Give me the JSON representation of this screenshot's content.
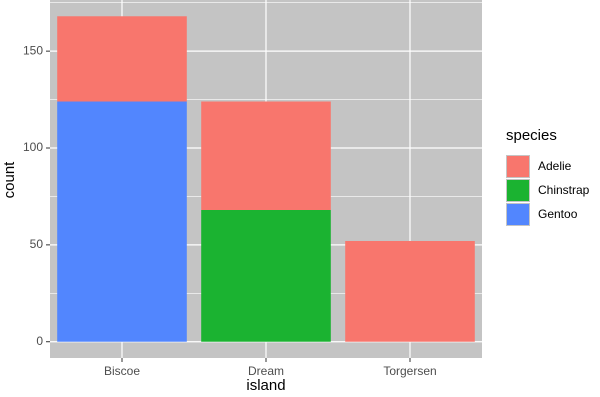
{
  "chart_data": {
    "type": "stacked_bar",
    "x_label": "island",
    "y_label": "count",
    "legend_title": "species",
    "categories": [
      "Biscoe",
      "Dream",
      "Torgersen"
    ],
    "series": [
      {
        "name": "Adelie",
        "color": "#f8766d",
        "values": [
          44,
          56,
          52
        ]
      },
      {
        "name": "Chinstrap",
        "color": "#1bb331",
        "values": [
          0,
          68,
          0
        ]
      },
      {
        "name": "Gentoo",
        "color": "#5286fe",
        "values": [
          124,
          0,
          0
        ]
      }
    ],
    "ylim": [
      -8.4,
      176.4
    ],
    "yticks": [
      0,
      50,
      100,
      150
    ],
    "minor_yticks": [
      25,
      75,
      125,
      175
    ],
    "grid": true,
    "legend_position": "right"
  }
}
